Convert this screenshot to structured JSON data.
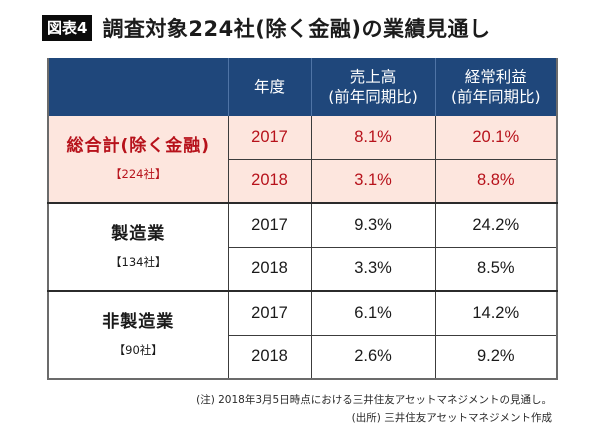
{
  "figure": {
    "badge": "図表4",
    "title": "調査対象224社(除く金融)の業績見通し"
  },
  "table": {
    "headers": {
      "group": "",
      "year": "年度",
      "sales_line1": "売上高",
      "sales_line2": "(前年同期比)",
      "profit_line1": "経常利益",
      "profit_line2": "(前年同期比)"
    },
    "groups": [
      {
        "name": "総合計(除く金融)",
        "count": "【224社】",
        "highlight": true,
        "highlight_bg": "#fde6de",
        "highlight_text": "#b7121b",
        "rows": [
          {
            "year": "2017",
            "sales": "8.1%",
            "profit": "20.1%"
          },
          {
            "year": "2018",
            "sales": "3.1%",
            "profit": "8.8%"
          }
        ]
      },
      {
        "name": "製造業",
        "count": "【134社】",
        "highlight": false,
        "rows": [
          {
            "year": "2017",
            "sales": "9.3%",
            "profit": "24.2%"
          },
          {
            "year": "2018",
            "sales": "3.3%",
            "profit": "8.5%"
          }
        ]
      },
      {
        "name": "非製造業",
        "count": "【90社】",
        "highlight": false,
        "rows": [
          {
            "year": "2017",
            "sales": "6.1%",
            "profit": "14.2%"
          },
          {
            "year": "2018",
            "sales": "2.6%",
            "profit": "9.2%"
          }
        ]
      }
    ],
    "header_bg": "#1f477b"
  },
  "notes": {
    "note": "(注) 2018年3月5日時点における三井住友アセットマネジメントの見通し。",
    "source": "(出所) 三井住友アセットマネジメント作成"
  }
}
